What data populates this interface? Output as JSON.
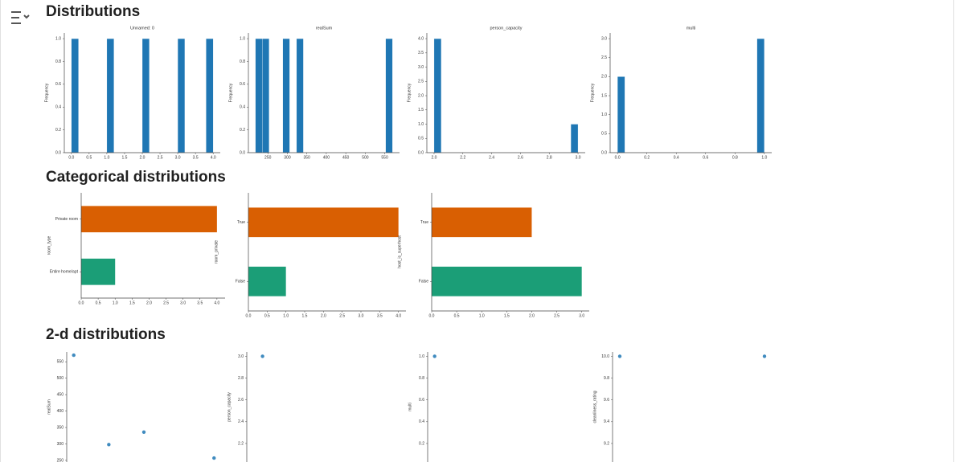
{
  "sections": [
    {
      "title": "Distributions"
    },
    {
      "title": "Categorical distributions"
    },
    {
      "title": "2-d distributions"
    }
  ],
  "chart_data": [
    {
      "type": "histogram",
      "title": "Unnamed: 0",
      "ylabel": "Frequency",
      "color": "#1f77b4",
      "bins": [
        0,
        0.2,
        0.4,
        0.6,
        0.8,
        1.0,
        1.2,
        1.4,
        1.6,
        1.8,
        2.0,
        2.2,
        2.4,
        2.6,
        2.8,
        3.0,
        3.2,
        3.4,
        3.6,
        3.8,
        4.0
      ],
      "values": [
        1,
        0,
        0,
        0,
        0,
        1,
        0,
        0,
        0,
        0,
        1,
        0,
        0,
        0,
        0,
        1,
        0,
        0,
        0,
        1
      ],
      "xlim": [
        -0.2,
        4.2
      ],
      "xticks": [
        {
          "value": 0,
          "label": "0.0"
        },
        0.5,
        {
          "value": 1,
          "label": "1.0"
        },
        1.5,
        {
          "value": 2,
          "label": "2.0"
        },
        2.5,
        {
          "value": 3,
          "label": "3.0"
        },
        3.5,
        {
          "value": 4,
          "label": "4.0"
        }
      ],
      "ylim": [
        0,
        1.05
      ],
      "yticks": [
        {
          "value": 0,
          "label": "0.0"
        },
        0.2,
        0.4,
        0.6,
        0.8,
        {
          "value": 1,
          "label": "1.0"
        }
      ]
    },
    {
      "type": "histogram",
      "title": "realSum",
      "ylabel": "Frequency",
      "color": "#1f77b4",
      "bins": [
        218,
        235.6,
        253.2,
        270.8,
        288.4,
        306,
        323.6,
        341.2,
        358.8,
        376.4,
        394,
        411.6,
        429.2,
        446.8,
        464.4,
        482,
        499.6,
        517.2,
        534.8,
        552.4,
        570
      ],
      "values": [
        1,
        1,
        0,
        0,
        1,
        0,
        1,
        0,
        0,
        0,
        0,
        0,
        0,
        0,
        0,
        0,
        0,
        0,
        0,
        1
      ],
      "xlim": [
        200,
        588
      ],
      "xticks": [
        250,
        300,
        350,
        400,
        450,
        500,
        550
      ],
      "ylim": [
        0,
        1.05
      ],
      "yticks": [
        {
          "value": 0,
          "label": "0.0"
        },
        0.2,
        0.4,
        0.6,
        0.8,
        {
          "value": 1,
          "label": "1.0"
        }
      ]
    },
    {
      "type": "histogram",
      "title": "person_capacity",
      "ylabel": "Frequency",
      "color": "#1f77b4",
      "bins": [
        2.0,
        2.05,
        2.1,
        2.15,
        2.2,
        2.25,
        2.3,
        2.35,
        2.4,
        2.45,
        2.5,
        2.55,
        2.6,
        2.65,
        2.7,
        2.75,
        2.8,
        2.85,
        2.9,
        2.95,
        3.0
      ],
      "values": [
        4,
        0,
        0,
        0,
        0,
        0,
        0,
        0,
        0,
        0,
        0,
        0,
        0,
        0,
        0,
        0,
        0,
        0,
        0,
        1
      ],
      "xlim": [
        1.95,
        3.05
      ],
      "xticks": [
        {
          "value": 2,
          "label": "2.0"
        },
        2.2,
        2.4,
        2.6,
        2.8,
        {
          "value": 3,
          "label": "3.0"
        }
      ],
      "ylim": [
        0,
        4.2
      ],
      "yticks": [
        {
          "value": 0,
          "label": "0.0"
        },
        0.5,
        {
          "value": 1,
          "label": "1.0"
        },
        1.5,
        {
          "value": 2,
          "label": "2.0"
        },
        2.5,
        {
          "value": 3,
          "label": "3.0"
        },
        3.5,
        {
          "value": 4,
          "label": "4.0"
        }
      ]
    },
    {
      "type": "histogram",
      "title": "multi",
      "ylabel": "Frequency",
      "color": "#1f77b4",
      "bins": [
        0,
        0.05,
        0.1,
        0.15,
        0.2,
        0.25,
        0.3,
        0.35,
        0.4,
        0.45,
        0.5,
        0.55,
        0.6,
        0.65,
        0.7,
        0.75,
        0.8,
        0.85,
        0.9,
        0.95,
        1.0
      ],
      "values": [
        2,
        0,
        0,
        0,
        0,
        0,
        0,
        0,
        0,
        0,
        0,
        0,
        0,
        0,
        0,
        0,
        0,
        0,
        0,
        3
      ],
      "xlim": [
        -0.05,
        1.05
      ],
      "xticks": [
        {
          "value": 0,
          "label": "0.0"
        },
        0.2,
        0.4,
        0.6,
        0.8,
        {
          "value": 1,
          "label": "1.0"
        }
      ],
      "ylim": [
        0,
        3.15
      ],
      "yticks": [
        {
          "value": 0,
          "label": "0.0"
        },
        0.5,
        {
          "value": 1,
          "label": "1.0"
        },
        1.5,
        {
          "value": 2,
          "label": "2.0"
        },
        2.5,
        {
          "value": 3,
          "label": "3.0"
        }
      ]
    },
    {
      "type": "barh",
      "ylabel": "room_type",
      "categories": [
        "Private room",
        "Entire home/apt"
      ],
      "values": [
        4,
        1
      ],
      "colors": [
        "#d95f02",
        "#1b9e77"
      ],
      "xlim": [
        0,
        4.24
      ],
      "xticks": [
        {
          "value": 0,
          "label": "0.0"
        },
        0.5,
        {
          "value": 1,
          "label": "1.0"
        },
        1.5,
        {
          "value": 2,
          "label": "2.0"
        },
        2.5,
        {
          "value": 3,
          "label": "3.0"
        },
        3.5,
        {
          "value": 4,
          "label": "4.0"
        }
      ]
    },
    {
      "type": "barh",
      "ylabel": "room_private",
      "categories": [
        "True",
        "False"
      ],
      "values": [
        4,
        1
      ],
      "colors": [
        "#d95f02",
        "#1b9e77"
      ],
      "xlim": [
        0,
        4.2
      ],
      "xticks": [
        {
          "value": 0,
          "label": "0.0"
        },
        0.5,
        {
          "value": 1,
          "label": "1.0"
        },
        1.5,
        {
          "value": 2,
          "label": "2.0"
        },
        2.5,
        {
          "value": 3,
          "label": "3.0"
        },
        3.5,
        {
          "value": 4,
          "label": "4.0"
        }
      ]
    },
    {
      "type": "barh",
      "ylabel": "host_is_superhost",
      "categories": [
        "True",
        "False"
      ],
      "values": [
        2,
        3
      ],
      "colors": [
        "#d95f02",
        "#1b9e77"
      ],
      "xlim": [
        0,
        3.15
      ],
      "xticks": [
        {
          "value": 0,
          "label": "0.0"
        },
        0.5,
        {
          "value": 1,
          "label": "1.0"
        },
        1.5,
        {
          "value": 2,
          "label": "2.0"
        },
        2.5,
        {
          "value": 3,
          "label": "3.0"
        }
      ]
    },
    {
      "type": "scatter",
      "ylabel": "realSum",
      "color": "#1f77b4",
      "x": [
        0,
        1,
        2,
        4
      ],
      "y": [
        570,
        298,
        336,
        257
      ],
      "xlim": [
        -0.2,
        4.2
      ],
      "ylim": [
        245,
        580
      ],
      "yticks": [
        550,
        500,
        450,
        400,
        350,
        300,
        250
      ]
    },
    {
      "type": "scatter",
      "ylabel": "person_capacity",
      "color": "#1f77b4",
      "x": [
        240
      ],
      "y": [
        3
      ],
      "xlim": [
        200,
        588
      ],
      "ylim": [
        2.03,
        3.04
      ],
      "yticks": [
        {
          "value": 3,
          "label": "3.0"
        },
        2.8,
        2.6,
        2.4,
        2.2
      ]
    },
    {
      "type": "scatter",
      "ylabel": "multi",
      "color": "#1f77b4",
      "x": [
        2
      ],
      "y": [
        1
      ],
      "xlim": [
        1.95,
        3.05
      ],
      "ylim": [
        0.03,
        1.04
      ],
      "yticks": [
        {
          "value": 1,
          "label": "1.0"
        },
        0.8,
        0.6,
        0.4,
        0.2
      ]
    },
    {
      "type": "scatter",
      "ylabel": "cleanliness_rating",
      "color": "#1f77b4",
      "x": [
        0,
        1
      ],
      "y": [
        10,
        10
      ],
      "xlim": [
        -0.05,
        1.05
      ],
      "ylim": [
        9.03,
        10.04
      ],
      "yticks": [
        {
          "value": 10,
          "label": "10.0"
        },
        9.8,
        9.6,
        9.4,
        9.2
      ]
    }
  ]
}
